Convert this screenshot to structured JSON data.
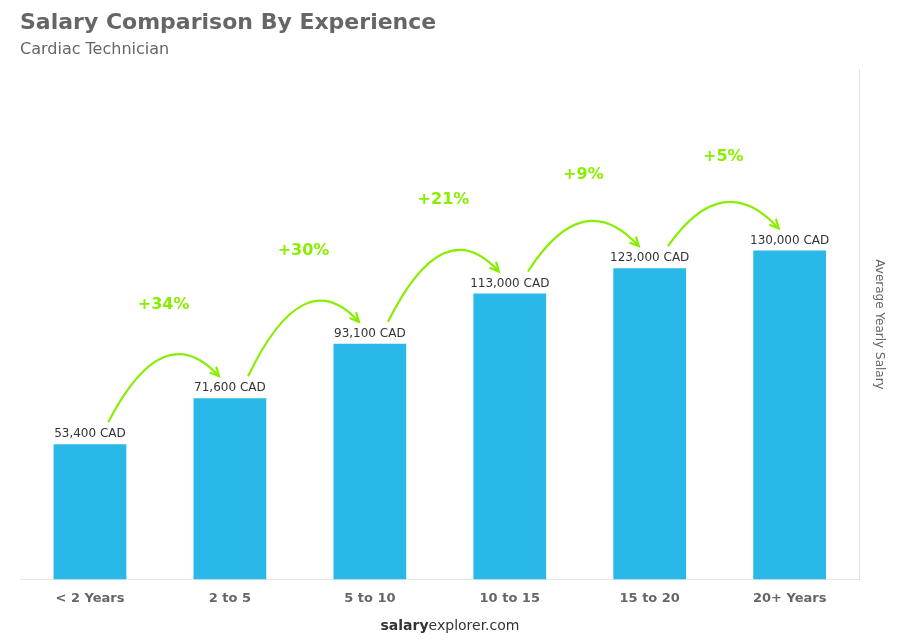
{
  "chart_data": {
    "type": "bar",
    "title": "Salary Comparison By Experience",
    "subtitle": "Cardiac Technician",
    "categories": [
      "< 2 Years",
      "2 to 5",
      "5 to 10",
      "10 to 15",
      "15 to 20",
      "20+ Years"
    ],
    "values": [
      53400,
      71600,
      93100,
      113000,
      123000,
      130000
    ],
    "value_labels": [
      "53,400 CAD",
      "71,600 CAD",
      "93,100 CAD",
      "113,000 CAD",
      "123,000 CAD",
      "130,000 CAD"
    ],
    "data_labels": true,
    "color": "#29b8e8",
    "ylabel": "Average Yearly Salary",
    "ylim": [
      0,
      201500
    ],
    "tick_labels": "x",
    "grid": false,
    "annotations": [
      {
        "from": "< 2 Years",
        "to": "2 to 5",
        "text": "+34%",
        "color": "#88ee00"
      },
      {
        "from": "2 to 5",
        "to": "5 to 10",
        "text": "+30%",
        "color": "#88ee00"
      },
      {
        "from": "5 to 10",
        "to": "10 to 15",
        "text": "+21%",
        "color": "#88ee00"
      },
      {
        "from": "10 to 15",
        "to": "15 to 20",
        "text": "+9%",
        "color": "#88ee00"
      },
      {
        "from": "15 to 20",
        "to": "20+ Years",
        "text": "+5%",
        "color": "#88ee00"
      }
    ],
    "footer": [
      "salary",
      "explorer.com"
    ]
  }
}
